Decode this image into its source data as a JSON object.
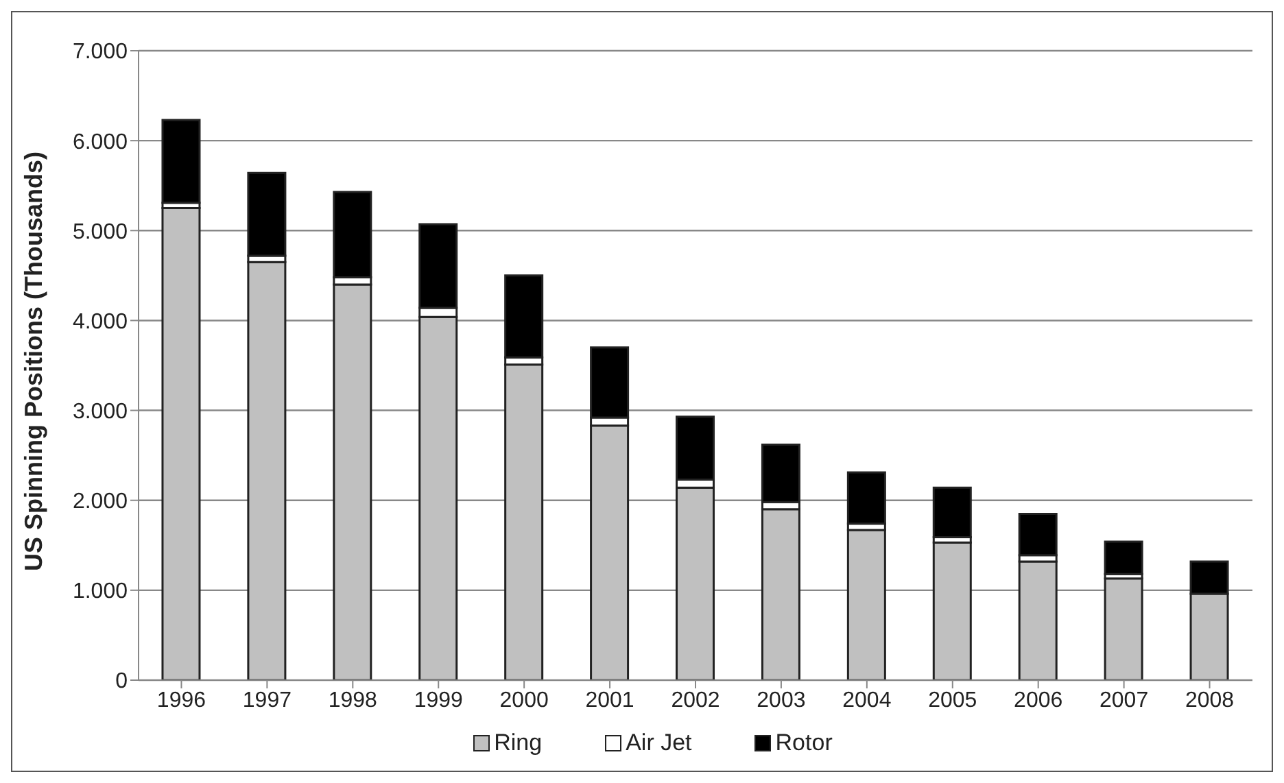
{
  "chart_data": {
    "type": "bar",
    "ylabel": "US Spinning Positions (Thousands)",
    "categories": [
      "1996",
      "1997",
      "1998",
      "1999",
      "2000",
      "2001",
      "2002",
      "2003",
      "2004",
      "2005",
      "2006",
      "2007",
      "2008"
    ],
    "series": [
      {
        "name": "Ring",
        "color": "#c0c0c0",
        "values": [
          5250,
          4650,
          4400,
          4040,
          3510,
          2830,
          2140,
          1900,
          1670,
          1530,
          1320,
          1130,
          960
        ]
      },
      {
        "name": "Air Jet",
        "color": "#ffffff",
        "values": [
          60,
          70,
          80,
          100,
          80,
          90,
          90,
          80,
          70,
          60,
          70,
          50,
          null
        ]
      },
      {
        "name": "Rotor",
        "color": "#000000",
        "values": [
          920,
          920,
          950,
          930,
          910,
          780,
          700,
          640,
          570,
          550,
          460,
          360,
          360
        ]
      }
    ],
    "stacked": true,
    "ylim": [
      0,
      7000
    ],
    "yticks": [
      0,
      {
        "value": 1000,
        "label": "1.000"
      },
      {
        "value": 2000,
        "label": "2.000"
      },
      {
        "value": 3000,
        "label": "3.000"
      },
      {
        "value": 4000,
        "label": "4.000"
      },
      {
        "value": 5000,
        "label": "5.000"
      },
      {
        "value": 6000,
        "label": "6.000"
      },
      {
        "value": 7000,
        "label": "7.000"
      }
    ],
    "grid": "y",
    "legend": "bottom"
  }
}
